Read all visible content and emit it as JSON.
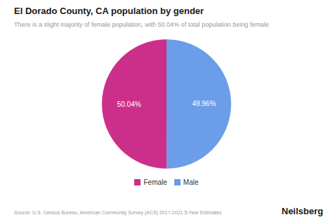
{
  "chart_data": {
    "type": "pie",
    "title": "El Dorado County, CA population by gender",
    "subtitle": "There is a slight majority of female population, with 50.04% of total population being female",
    "categories": [
      "Male",
      "Female"
    ],
    "values": [
      49.96,
      50.04
    ],
    "value_labels": [
      "49.96%",
      "50.04%"
    ],
    "data_labels": true,
    "colors": [
      "#6b9de8",
      "#cc2f8a"
    ],
    "legend": "bottom",
    "annotations": [
      "Source: U.S. Census Bureau, American Community Survey (ACS) 2017-2021 5-Year Estimates",
      "Neilsberg"
    ]
  }
}
